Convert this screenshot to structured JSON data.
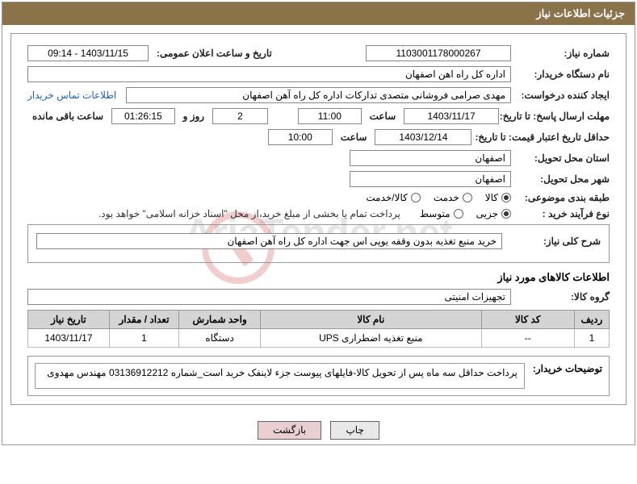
{
  "header": {
    "title": "جزئیات اطلاعات نیاز"
  },
  "fields": {
    "needNo": {
      "label": "شماره نیاز:",
      "value": "1103001178000267"
    },
    "announce": {
      "label": "تاریخ و ساعت اعلان عمومی:",
      "value": "1403/11/15 - 09:14"
    },
    "buyerOrg": {
      "label": "نام دستگاه خریدار:",
      "value": "اداره کل راه اهن اصفهان"
    },
    "requester": {
      "label": "ایجاد کننده درخواست:",
      "value": "مهدی صرامی فروشانی متصدی تدارکات اداره کل راه آهن اصفهان"
    },
    "contactLink": "اطلاعات تماس خریدار",
    "replyDeadline": {
      "label": "مهلت ارسال پاسخ: تا تاریخ:",
      "date": "1403/11/17",
      "timeLabel": "ساعت",
      "time": "11:00"
    },
    "remaining": {
      "days": "2",
      "daysLabel": "روز و",
      "clock": "01:26:15",
      "suffix": "ساعت باقی مانده"
    },
    "priceValidity": {
      "label": "حداقل تاریخ اعتبار قیمت: تا تاریخ:",
      "date": "1403/12/14",
      "timeLabel": "ساعت",
      "time": "10:00"
    },
    "province": {
      "label": "استان محل تحویل:",
      "value": "اصفهان"
    },
    "city": {
      "label": "شهر محل تحویل:",
      "value": "اصفهان"
    },
    "category": {
      "label": "طبقه بندی موضوعی:",
      "options": [
        "کالا",
        "خدمت",
        "کالا/خدمت"
      ],
      "selected": 0
    },
    "purchaseType": {
      "label": "نوع فرآیند خرید :",
      "options": [
        "جزیی",
        "متوسط"
      ],
      "selected": 0,
      "note": "پرداخت تمام یا بخشی از مبلغ خرید،از محل \"اسناد خزانه اسلامی\" خواهد بود."
    },
    "generalDesc": {
      "label": "شرح کلی نیاز:",
      "value": "خرید منبع تغذیه بدون وقفه یوپی اس جهت اداره کل راه آهن اصفهان"
    },
    "goodsSection": "اطلاعات کالاهای مورد نیاز",
    "goodsGroup": {
      "label": "گروه کالا:",
      "value": "تجهیزات امنیتی"
    }
  },
  "table": {
    "headers": [
      "ردیف",
      "کد کالا",
      "نام کالا",
      "واحد شمارش",
      "تعداد / مقدار",
      "تاریخ نیاز"
    ],
    "widths": [
      "6%",
      "16%",
      "38%",
      "14%",
      "12%",
      "14%"
    ],
    "rows": [
      [
        "1",
        "--",
        "منبع تغذیه اضطراری UPS",
        "دستگاه",
        "1",
        "1403/11/17"
      ]
    ]
  },
  "buyerNotes": {
    "label": "توضیحات خریدار:",
    "value": "پرداخت حداقل سه ماه پس از تحویل کالا-فایلهای پیوست جزء لاینفک خرید است_شماره 03136912212 مهندس مهدوی"
  },
  "buttons": {
    "print": "چاپ",
    "back": "بازگشت"
  },
  "colors": {
    "headerBg": "#8a7249",
    "headerText": "#ffffff",
    "border": "#999999",
    "tableHeaderBg": "#d4d4d4",
    "link": "#2060c0"
  },
  "watermark": "AriaTender.net"
}
